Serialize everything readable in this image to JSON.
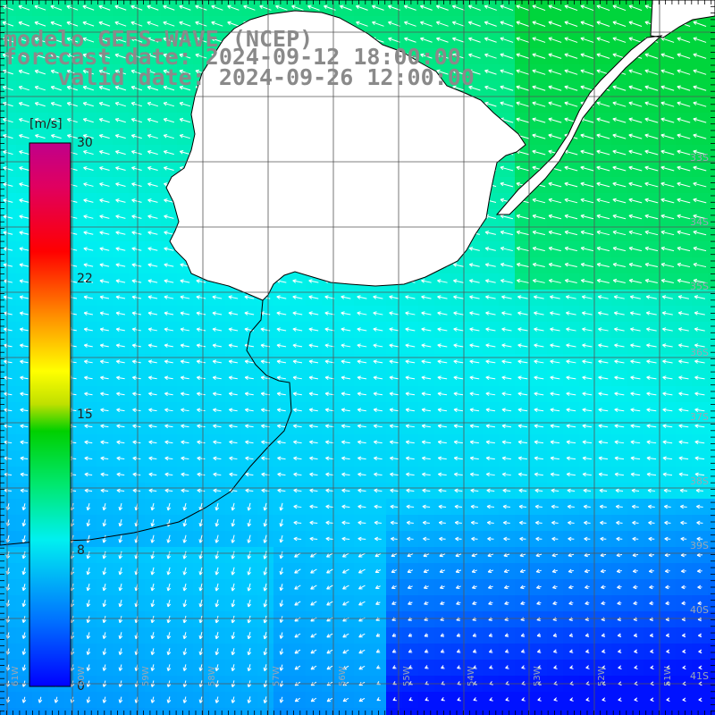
{
  "title": {
    "line1": "modelo GEFS-WAVE (NCEP)",
    "line2": "forecast date: 2024-09-12 18:00:00",
    "line3": "    valid date: 2024-09-26 12:00:00"
  },
  "colorbar": {
    "unit": "[m/s]",
    "ticks": [
      "30",
      "22",
      "15",
      "8",
      "0"
    ],
    "tick_values": [
      30,
      22,
      15,
      8,
      0
    ],
    "range": [
      0,
      30
    ]
  },
  "lat_labels": [
    "33S",
    "34S",
    "35S",
    "36S",
    "37S",
    "38S",
    "39S",
    "40S",
    "41S"
  ],
  "lon_labels": [
    "61W",
    "60W",
    "59W",
    "58W",
    "57W",
    "56W",
    "55W",
    "54W",
    "53W",
    "52W",
    "51W"
  ],
  "colors": {
    "land": "#ffffff",
    "coast": "#000000",
    "grid": "#555555",
    "arrows": "#ffffff",
    "title": "#8a8a8a"
  },
  "field": {
    "description_units": "m/s",
    "wind_direction": "mostly from northeast/east, turning southward along southwest coast"
  }
}
